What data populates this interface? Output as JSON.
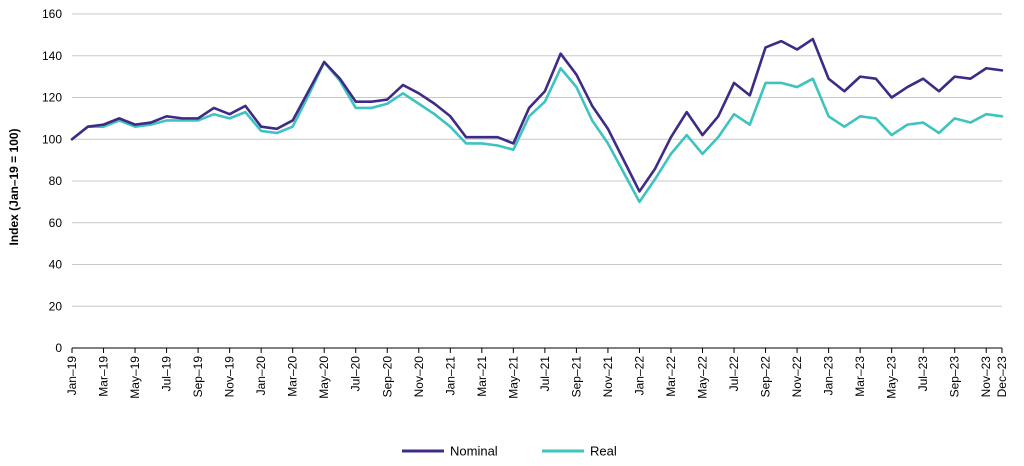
{
  "chart_data": {
    "type": "line",
    "ylabel": "Index (Jan–19 = 100)",
    "ylim": [
      0,
      160
    ],
    "yticks": [
      0,
      20,
      40,
      60,
      80,
      100,
      120,
      140,
      160
    ],
    "grid": true,
    "legend_position": "bottom-center",
    "x": [
      "Jan–19",
      "Feb–19",
      "Mar–19",
      "Apr–19",
      "May–19",
      "Jun–19",
      "Jul–19",
      "Aug–19",
      "Sep–19",
      "Oct–19",
      "Nov–19",
      "Dec–19",
      "Jan–20",
      "Feb–20",
      "Mar–20",
      "Apr–20",
      "May–20",
      "Jun–20",
      "Jul–20",
      "Aug–20",
      "Sep–20",
      "Oct–20",
      "Nov–20",
      "Dec–20",
      "Jan–21",
      "Feb–21",
      "Mar–21",
      "Apr–21",
      "May–21",
      "Jun–21",
      "Jul–21",
      "Aug–21",
      "Sep–21",
      "Oct–21",
      "Nov–21",
      "Dec–21",
      "Jan–22",
      "Feb–22",
      "Mar–22",
      "Apr–22",
      "May–22",
      "Jun–22",
      "Jul–22",
      "Aug–22",
      "Sep–22",
      "Oct–22",
      "Nov–22",
      "Dec–22",
      "Jan–23",
      "Feb–23",
      "Mar–23",
      "Apr–23",
      "May–23",
      "Jun–23",
      "Jul–23",
      "Aug–23",
      "Sep–23",
      "Oct–23",
      "Nov–23",
      "Dec–23"
    ],
    "xtick_labels": [
      "Jan–19",
      "Mar–19",
      "May–19",
      "Jul–19",
      "Sep–19",
      "Nov–19",
      "Jan–20",
      "Mar–20",
      "May–20",
      "Jul–20",
      "Sep–20",
      "Nov–20",
      "Jan–21",
      "Mar–21",
      "May–21",
      "Jul–21",
      "Sep–21",
      "Nov–21",
      "Jan–22",
      "Mar–22",
      "May–22",
      "Jul–22",
      "Sep–22",
      "Nov–22",
      "Jan–23",
      "Mar–23",
      "May–23",
      "Jul–23",
      "Sep–23",
      "Nov–23",
      "Dec–23"
    ],
    "series": [
      {
        "name": "Nominal",
        "color": "#3f2a86",
        "values": [
          100,
          106,
          107,
          110,
          107,
          108,
          111,
          110,
          110,
          115,
          112,
          116,
          106,
          105,
          109,
          123,
          137,
          129,
          118,
          118,
          119,
          126,
          122,
          117,
          111,
          101,
          101,
          101,
          98,
          115,
          123,
          141,
          131,
          116,
          105,
          90,
          75,
          86,
          101,
          113,
          102,
          111,
          127,
          121,
          144,
          147,
          143,
          148,
          129,
          123,
          130,
          129,
          120,
          125,
          129,
          123,
          130,
          129,
          134,
          133
        ]
      },
      {
        "name": "Real",
        "color": "#3ec3bf",
        "values": [
          100,
          106,
          106,
          109,
          106,
          107,
          109,
          109,
          109,
          112,
          110,
          113,
          104,
          103,
          106,
          121,
          137,
          128,
          115,
          115,
          117,
          122,
          117,
          112,
          106,
          98,
          98,
          97,
          95,
          111,
          118,
          134,
          125,
          109,
          98,
          84,
          70,
          81,
          93,
          102,
          93,
          101,
          112,
          107,
          127,
          127,
          125,
          129,
          111,
          106,
          111,
          110,
          102,
          107,
          108,
          103,
          110,
          108,
          112,
          111
        ]
      }
    ]
  }
}
